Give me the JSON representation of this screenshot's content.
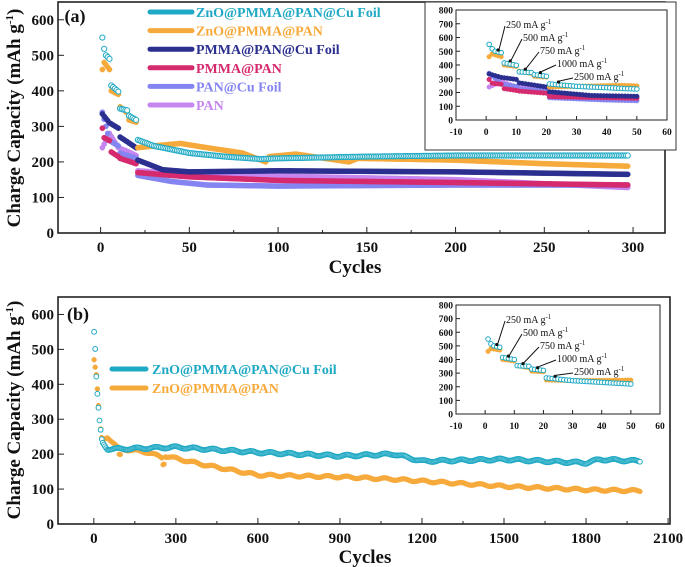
{
  "chart_data": [
    {
      "panel_label": "(a)",
      "type": "scatter",
      "xlabel": "Cycles",
      "ylabel": {
        "main": "Charge Capacity (mAh g",
        "sup": "-1",
        "end": ")"
      },
      "xlim": [
        -24,
        318
      ],
      "ylim": [
        0,
        650
      ],
      "xticks": [
        0,
        50,
        100,
        150,
        200,
        250,
        300
      ],
      "yticks": [
        0,
        100,
        200,
        300,
        400,
        500,
        600
      ],
      "grid": false,
      "legend_position": "top",
      "series": [
        {
          "name": "ZnO@PMMA@PAN@Cu Foil",
          "color": "#1fa9c4",
          "marker": "open-circle",
          "points": [
            [
              1,
              550
            ],
            [
              2,
              518
            ],
            [
              3,
              500
            ],
            [
              5,
              490
            ],
            [
              6,
              415
            ],
            [
              10,
              398
            ],
            [
              11,
              350
            ],
            [
              15,
              345
            ],
            [
              16,
              330
            ],
            [
              20,
              318
            ],
            [
              21,
              262
            ],
            [
              30,
              245
            ],
            [
              50,
              225
            ],
            [
              70,
              215
            ],
            [
              90,
              208
            ],
            [
              100,
              210
            ],
            [
              150,
              215
            ],
            [
              200,
              218
            ],
            [
              250,
              218
            ],
            [
              297,
              218
            ]
          ]
        },
        {
          "name": "ZnO@PMMA@PAN",
          "color": "#f7aa3c",
          "marker": "filled-circle",
          "points": [
            [
              1,
              460
            ],
            [
              2,
              480
            ],
            [
              5,
              460
            ],
            [
              6,
              400
            ],
            [
              10,
              390
            ],
            [
              11,
              355
            ],
            [
              15,
              338
            ],
            [
              16,
              318
            ],
            [
              20,
              312
            ],
            [
              21,
              240
            ],
            [
              30,
              245
            ],
            [
              45,
              252
            ],
            [
              60,
              240
            ],
            [
              80,
              225
            ],
            [
              93,
              200
            ],
            [
              95,
              215
            ],
            [
              110,
              222
            ],
            [
              140,
              200
            ],
            [
              145,
              210
            ],
            [
              200,
              205
            ],
            [
              250,
              195
            ],
            [
              297,
              188
            ]
          ]
        },
        {
          "name": "PMMA@PAN@Cu Foil",
          "color": "#2b2f8f",
          "marker": "filled-circle",
          "points": [
            [
              1,
              335
            ],
            [
              5,
              310
            ],
            [
              10,
              295
            ],
            [
              11,
              270
            ],
            [
              20,
              240
            ],
            [
              21,
              205
            ],
            [
              35,
              178
            ],
            [
              50,
              172
            ],
            [
              100,
              175
            ],
            [
              200,
              172
            ],
            [
              297,
              165
            ]
          ]
        },
        {
          "name": "PMMA@PAN",
          "color": "#d62a6e",
          "marker": "filled-circle",
          "points": [
            [
              1,
              295
            ],
            [
              2,
              268
            ],
            [
              5,
              260
            ],
            [
              6,
              228
            ],
            [
              10,
              215
            ],
            [
              11,
              210
            ],
            [
              20,
              195
            ],
            [
              21,
              170
            ],
            [
              50,
              158
            ],
            [
              100,
              148
            ],
            [
              150,
              145
            ],
            [
              200,
              142
            ],
            [
              297,
              135
            ]
          ]
        },
        {
          "name": "PAN@Cu Foil",
          "color": "#8585f2",
          "marker": "filled-circle",
          "points": [
            [
              1,
              340
            ],
            [
              5,
              260
            ],
            [
              10,
              245
            ],
            [
              11,
              225
            ],
            [
              20,
              210
            ],
            [
              21,
              162
            ],
            [
              40,
              145
            ],
            [
              60,
              135
            ],
            [
              100,
              132
            ],
            [
              200,
              135
            ],
            [
              297,
              135
            ]
          ]
        },
        {
          "name": "PAN",
          "color": "#c686f0",
          "marker": "filled-circle",
          "points": [
            [
              1,
              240
            ],
            [
              2,
              250
            ],
            [
              5,
              280
            ],
            [
              10,
              240
            ],
            [
              15,
              230
            ],
            [
              20,
              218
            ],
            [
              21,
              175
            ],
            [
              50,
              165
            ],
            [
              100,
              160
            ],
            [
              200,
              150
            ],
            [
              297,
              128
            ]
          ]
        }
      ],
      "inset": {
        "xlim": [
          -10,
          60
        ],
        "ylim": [
          0,
          800
        ],
        "xticks": [
          -10,
          0,
          10,
          20,
          30,
          40,
          50,
          60
        ],
        "yticks": [
          0,
          100,
          200,
          300,
          400,
          500,
          600,
          700,
          800
        ],
        "annotations": [
          {
            "text": "250 mA g",
            "sup": "-1",
            "cycle": 4,
            "value": 495
          },
          {
            "text": "500 mA g",
            "sup": "-1",
            "cycle": 8,
            "value": 415
          },
          {
            "text": "750 mA g",
            "sup": "-1",
            "cycle": 13,
            "value": 355
          },
          {
            "text": "1000 mA g",
            "sup": "-1",
            "cycle": 18,
            "value": 330
          },
          {
            "text": "2500 mA g",
            "sup": "-1",
            "cycle": 24,
            "value": 262
          }
        ]
      }
    },
    {
      "panel_label": "(b)",
      "type": "scatter",
      "xlabel": "Cycles",
      "ylabel": {
        "main": "Charge Capacity (mAh g",
        "sup": "-1",
        "end": ")"
      },
      "xlim": [
        -131,
        2107
      ],
      "ylim": [
        0,
        650
      ],
      "xticks": [
        0,
        300,
        600,
        900,
        1200,
        1500,
        1800,
        2100
      ],
      "yticks": [
        0,
        100,
        200,
        300,
        400,
        500,
        600
      ],
      "grid": false,
      "legend_position": "center-left",
      "series": [
        {
          "name": "ZnO@PMMA@PAN@Cu Foil",
          "color": "#1fa9c4",
          "marker": "open-circle",
          "points": [
            [
              1,
              550
            ],
            [
              5,
              500
            ],
            [
              10,
              400
            ],
            [
              20,
              300
            ],
            [
              30,
              235
            ],
            [
              50,
              215
            ],
            [
              100,
              215
            ],
            [
              300,
              220
            ],
            [
              500,
              210
            ],
            [
              600,
              205
            ],
            [
              900,
              195
            ],
            [
              1100,
              200
            ],
            [
              1200,
              180
            ],
            [
              1500,
              185
            ],
            [
              1800,
              175
            ],
            [
              1850,
              185
            ],
            [
              2000,
              180
            ]
          ]
        },
        {
          "name": "ZnO@PMMA@PAN",
          "color": "#f7aa3c",
          "marker": "filled-circle",
          "points": [
            [
              1,
              470
            ],
            [
              10,
              420
            ],
            [
              20,
              300
            ],
            [
              30,
              240
            ],
            [
              50,
              250
            ],
            [
              90,
              215
            ],
            [
              95,
              185
            ],
            [
              100,
              215
            ],
            [
              200,
              205
            ],
            [
              250,
              190
            ],
            [
              255,
              160
            ],
            [
              260,
              195
            ],
            [
              400,
              170
            ],
            [
              500,
              155
            ],
            [
              600,
              140
            ],
            [
              900,
              135
            ],
            [
              1100,
              128
            ],
            [
              1500,
              108
            ],
            [
              1800,
              98
            ],
            [
              2000,
              95
            ]
          ]
        }
      ],
      "inset": {
        "xlim": [
          -10,
          60
        ],
        "ylim": [
          0,
          800
        ],
        "xticks": [
          -10,
          0,
          10,
          20,
          30,
          40,
          50,
          60
        ],
        "yticks": [
          0,
          100,
          200,
          300,
          400,
          500,
          600,
          700,
          800
        ],
        "series": [
          {
            "color": "#1fa9c4",
            "marker": "open-circle",
            "points": [
              [
                1,
                550
              ],
              [
                2,
                515
              ],
              [
                3,
                500
              ],
              [
                5,
                490
              ],
              [
                6,
                415
              ],
              [
                10,
                400
              ],
              [
                11,
                355
              ],
              [
                15,
                350
              ],
              [
                16,
                330
              ],
              [
                20,
                320
              ],
              [
                21,
                265
              ],
              [
                30,
                245
              ],
              [
                50,
                220
              ]
            ]
          },
          {
            "color": "#f7aa3c",
            "marker": "filled-circle",
            "points": [
              [
                1,
                460
              ],
              [
                2,
                480
              ],
              [
                5,
                470
              ],
              [
                6,
                400
              ],
              [
                10,
                390
              ],
              [
                11,
                355
              ],
              [
                15,
                340
              ],
              [
                16,
                315
              ],
              [
                20,
                310
              ],
              [
                21,
                250
              ],
              [
                30,
                245
              ],
              [
                50,
                248
              ]
            ]
          }
        ],
        "annotations": [
          {
            "text": "250 mA g",
            "sup": "-1",
            "cycle": 4,
            "value": 495
          },
          {
            "text": "500 mA g",
            "sup": "-1",
            "cycle": 8,
            "value": 410
          },
          {
            "text": "750 mA g",
            "sup": "-1",
            "cycle": 13,
            "value": 355
          },
          {
            "text": "1000 mA g",
            "sup": "-1",
            "cycle": 18,
            "value": 325
          },
          {
            "text": "2500 mA g",
            "sup": "-1",
            "cycle": 24,
            "value": 262
          }
        ]
      }
    }
  ]
}
